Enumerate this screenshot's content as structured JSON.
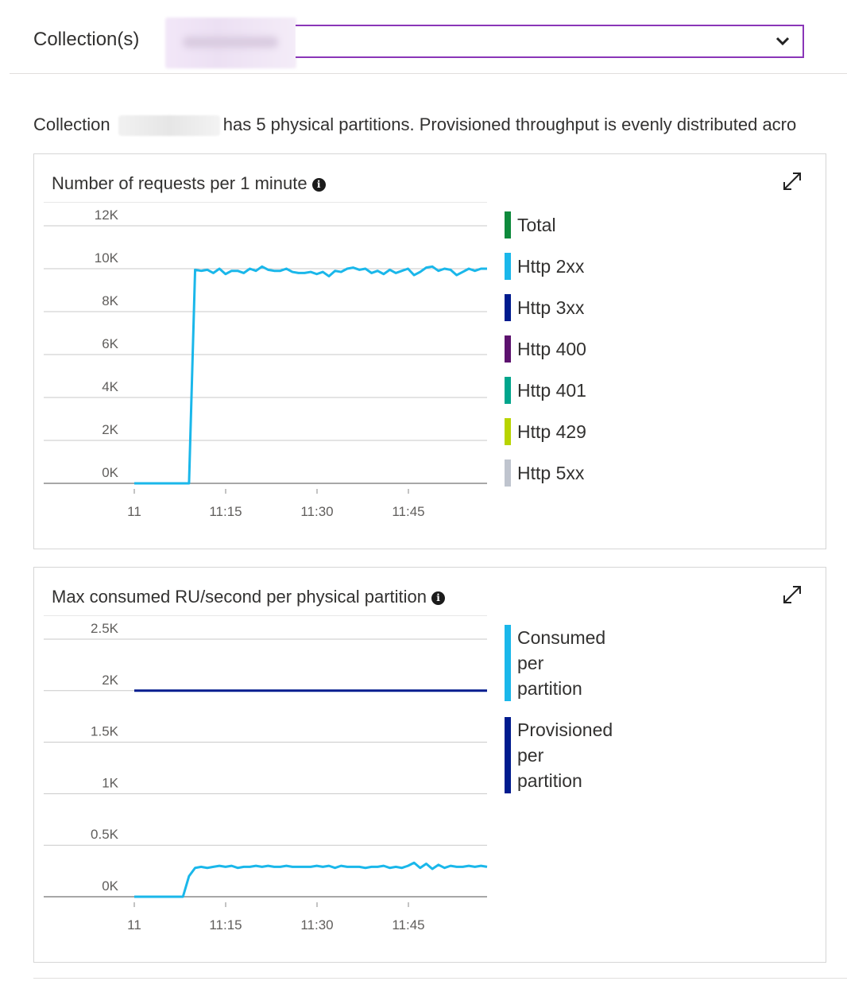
{
  "collection_selector": {
    "label": "Collection(s)",
    "selected_value": "singlertest",
    "chevron": "chevron-down-icon"
  },
  "summary": {
    "prefix": "Collection",
    "collection_name": "singlertest",
    "text": "has 5 physical partitions. Provisioned throughput is evenly distributed acro"
  },
  "colors": {
    "accent_border": "#8a36b8",
    "http_2xx": "#1ab7ea",
    "provisioned": "#001b8e"
  },
  "requests_chart": {
    "title": "Number of requests per 1 minute",
    "info_icon": "info-icon",
    "expand_icon": "expand-icon",
    "chart_data": {
      "type": "line",
      "title": "Number of requests per 1 minute",
      "yticks": [
        "12K",
        "10K",
        "8K",
        "6K",
        "4K",
        "2K",
        "0K"
      ],
      "ylim": [
        0,
        12000
      ],
      "xticks": [
        "11",
        "11:15",
        "11:30",
        "11:45"
      ],
      "xlim": [
        0,
        58
      ],
      "grid": true,
      "legend_placement": "right",
      "series": [
        {
          "name": "Total",
          "color": "#0e8a3c",
          "values": []
        },
        {
          "name": "Http 2xx",
          "color": "#1ab7ea",
          "x": [
            0,
            1,
            2,
            3,
            4,
            5,
            6,
            7,
            8,
            9,
            10,
            11,
            12,
            13,
            14,
            15,
            16,
            17,
            18,
            19,
            20,
            21,
            22,
            23,
            24,
            25,
            26,
            27,
            28,
            29,
            30,
            31,
            32,
            33,
            34,
            35,
            36,
            37,
            38,
            39,
            40,
            41,
            42,
            43,
            44,
            45,
            46,
            47,
            48,
            49,
            50,
            51,
            52,
            53,
            54,
            55,
            56,
            57,
            58
          ],
          "values": [
            0,
            0,
            0,
            0,
            0,
            0,
            0,
            0,
            0,
            0,
            9950,
            9900,
            9950,
            9800,
            10000,
            9750,
            9900,
            9900,
            9800,
            10000,
            9900,
            10100,
            9950,
            9900,
            9900,
            10000,
            9850,
            9800,
            9800,
            9850,
            9750,
            9850,
            9650,
            9900,
            9850,
            10000,
            10050,
            9950,
            10000,
            9800,
            9900,
            9750,
            9950,
            9800,
            9900,
            10000,
            9700,
            9850,
            10050,
            10100,
            9900,
            10000,
            9950,
            9700,
            9850,
            10000,
            9900,
            10000,
            10000
          ]
        },
        {
          "name": "Http 3xx",
          "color": "#001b8e",
          "values": []
        },
        {
          "name": "Http 400",
          "color": "#5c126e",
          "values": []
        },
        {
          "name": "Http 401",
          "color": "#00a58c",
          "values": []
        },
        {
          "name": "Http 429",
          "color": "#b8d400",
          "values": []
        },
        {
          "name": "Http 5xx",
          "color": "#bfc4ce",
          "values": []
        }
      ]
    }
  },
  "ru_chart": {
    "title": "Max consumed RU/second per physical partition",
    "info_icon": "info-icon",
    "expand_icon": "expand-icon",
    "chart_data": {
      "type": "line",
      "title": "Max consumed RU/second per physical partition",
      "yticks": [
        "2.5K",
        "2K",
        "1.5K",
        "1K",
        "0.5K",
        "0K"
      ],
      "ylim": [
        0,
        2500
      ],
      "xticks": [
        "11",
        "11:15",
        "11:30",
        "11:45"
      ],
      "xlim": [
        0,
        58
      ],
      "grid": true,
      "legend_placement": "right",
      "series": [
        {
          "name": "Consumed per partition",
          "legend_lines": [
            "Consumed",
            "per",
            "partition"
          ],
          "color": "#1ab7ea",
          "x": [
            0,
            1,
            2,
            3,
            4,
            5,
            6,
            7,
            8,
            9,
            10,
            11,
            12,
            13,
            14,
            15,
            16,
            17,
            18,
            19,
            20,
            21,
            22,
            23,
            24,
            25,
            26,
            27,
            28,
            29,
            30,
            31,
            32,
            33,
            34,
            35,
            36,
            37,
            38,
            39,
            40,
            41,
            42,
            43,
            44,
            45,
            46,
            47,
            48,
            49,
            50,
            51,
            52,
            53,
            54,
            55,
            56,
            57,
            58
          ],
          "values": [
            0,
            0,
            0,
            0,
            0,
            0,
            0,
            0,
            0,
            200,
            280,
            290,
            280,
            290,
            300,
            290,
            300,
            280,
            290,
            290,
            300,
            290,
            300,
            290,
            290,
            300,
            290,
            290,
            290,
            290,
            300,
            290,
            300,
            280,
            300,
            290,
            290,
            290,
            280,
            290,
            290,
            300,
            280,
            290,
            280,
            300,
            330,
            280,
            320,
            270,
            310,
            280,
            300,
            290,
            290,
            300,
            290,
            300,
            290
          ]
        },
        {
          "name": "Provisioned per partition",
          "legend_lines": [
            "Provisioned",
            "per",
            "partition"
          ],
          "color": "#001b8e",
          "x": [
            0,
            58
          ],
          "values": [
            2000,
            2000
          ]
        }
      ]
    }
  }
}
